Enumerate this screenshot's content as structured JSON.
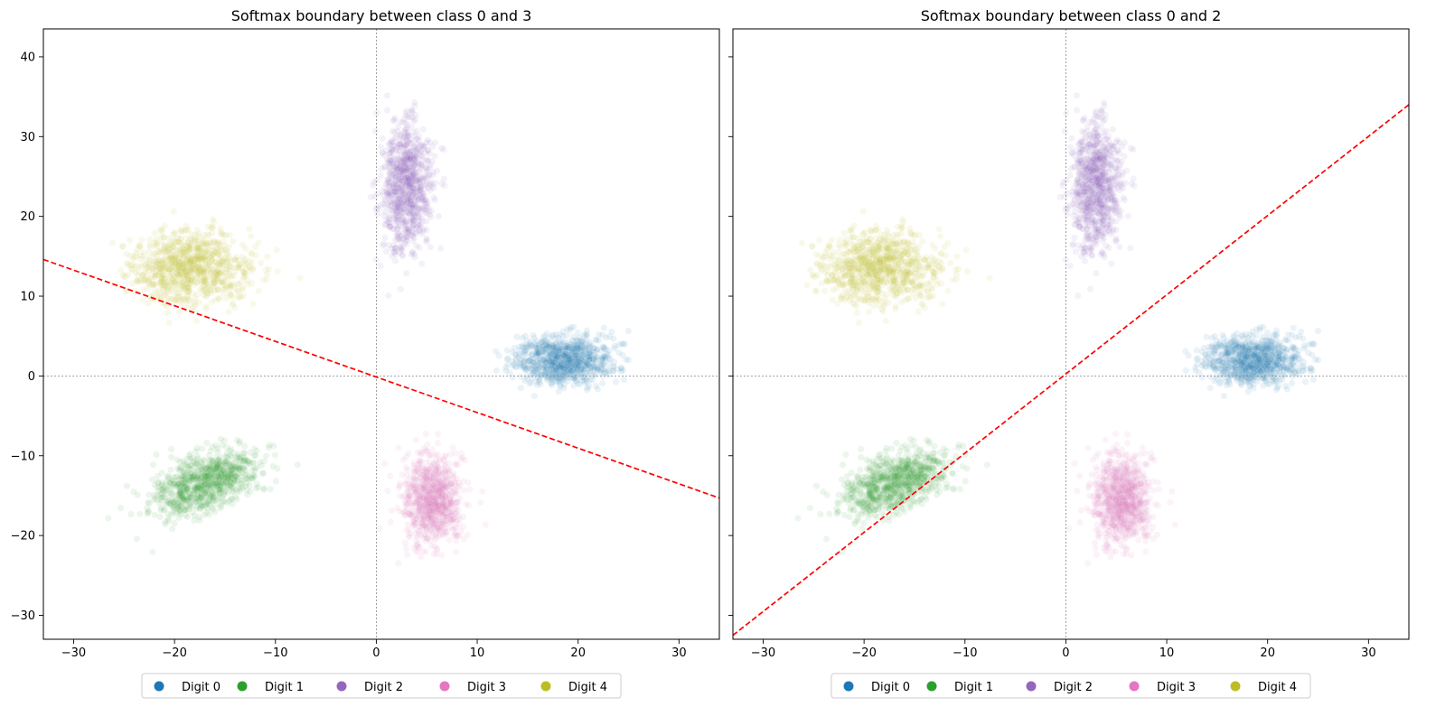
{
  "chart_data": [
    {
      "type": "scatter",
      "title": "Softmax boundary between class 0 and 3",
      "xlim": [
        -33,
        34
      ],
      "ylim": [
        -33,
        43.5
      ],
      "xticks": [
        -30,
        -20,
        -10,
        0,
        10,
        20,
        30
      ],
      "yticks": [
        -30,
        -20,
        -10,
        0,
        10,
        20,
        30,
        40
      ],
      "xtick_labels": [
        "−30",
        "−20",
        "−10",
        "0",
        "10",
        "20",
        "30"
      ],
      "ytick_labels": [
        "−30",
        "−20",
        "−10",
        "0",
        "10",
        "20",
        "30",
        "40"
      ],
      "reference_lines": {
        "x": 0,
        "y": 0,
        "style": "dotted",
        "color": "#888888"
      },
      "boundary": {
        "style": "dashed",
        "color": "#ff0000",
        "points": [
          [
            -33,
            14.6
          ],
          [
            34,
            -15.3
          ]
        ]
      },
      "series": [
        {
          "name": "Digit 0",
          "color": "#1f77b4",
          "center": [
            18.5,
            2.0
          ],
          "spread": [
            2.4,
            1.5
          ]
        },
        {
          "name": "Digit 1",
          "color": "#2ca02c",
          "center": [
            -17.0,
            -13.5
          ],
          "spread": [
            1.9,
            1.7
          ]
        },
        {
          "name": "Digit 2",
          "color": "#9467bd",
          "center": [
            3.0,
            24.0
          ],
          "spread": [
            1.2,
            4.0
          ]
        },
        {
          "name": "Digit 3",
          "color": "#e377c2",
          "center": [
            5.5,
            -15.5
          ],
          "spread": [
            1.5,
            2.8
          ]
        },
        {
          "name": "Digit 4",
          "color": "#bcbd22",
          "center": [
            -18.5,
            13.5
          ],
          "spread": [
            2.8,
            2.3
          ]
        }
      ],
      "legend": "bottom-center"
    },
    {
      "type": "scatter",
      "title": "Softmax boundary between class 0 and 2",
      "xlim": [
        -33,
        34
      ],
      "ylim": [
        -33,
        43.5
      ],
      "xticks": [
        -30,
        -20,
        -10,
        0,
        10,
        20,
        30
      ],
      "yticks": [
        -30,
        -20,
        -10,
        0,
        10,
        20,
        30,
        40
      ],
      "xtick_labels": [
        "−30",
        "−20",
        "−10",
        "0",
        "10",
        "20",
        "30"
      ],
      "ytick_labels": [],
      "reference_lines": {
        "x": 0,
        "y": 0,
        "style": "dotted",
        "color": "#888888"
      },
      "boundary": {
        "style": "dashed",
        "color": "#ff0000",
        "points": [
          [
            -33,
            -32.5
          ],
          [
            34,
            34.0
          ]
        ]
      },
      "series": [
        {
          "name": "Digit 0",
          "color": "#1f77b4",
          "center": [
            18.5,
            2.0
          ],
          "spread": [
            2.4,
            1.5
          ]
        },
        {
          "name": "Digit 1",
          "color": "#2ca02c",
          "center": [
            -17.0,
            -13.5
          ],
          "spread": [
            1.9,
            1.7
          ]
        },
        {
          "name": "Digit 2",
          "color": "#9467bd",
          "center": [
            3.0,
            24.0
          ],
          "spread": [
            1.2,
            4.0
          ]
        },
        {
          "name": "Digit 3",
          "color": "#e377c2",
          "center": [
            5.5,
            -15.5
          ],
          "spread": [
            1.5,
            2.8
          ]
        },
        {
          "name": "Digit 4",
          "color": "#bcbd22",
          "center": [
            -18.5,
            13.5
          ],
          "spread": [
            2.8,
            2.3
          ]
        }
      ],
      "legend": "bottom-center"
    }
  ]
}
